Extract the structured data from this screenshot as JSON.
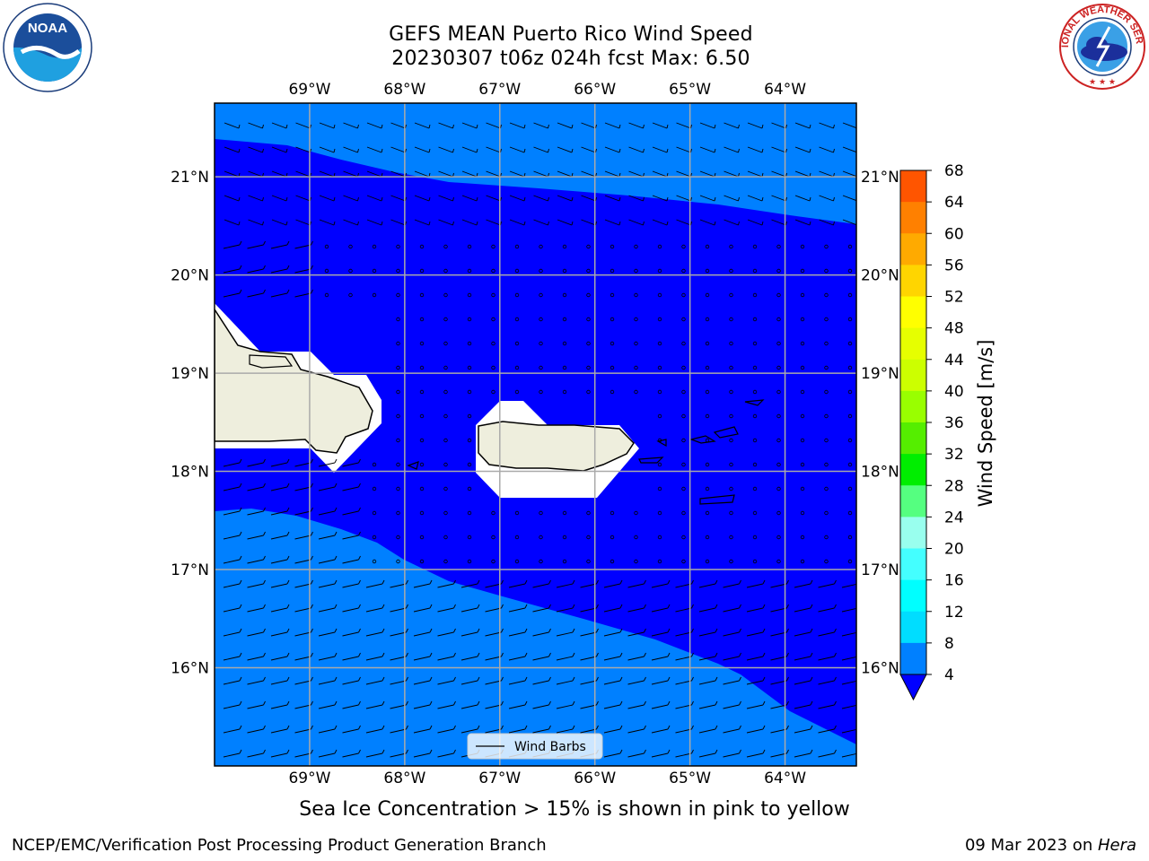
{
  "title": {
    "line1": "GEFS MEAN Puerto Rico Wind Speed",
    "line2": "20230307 t06z 024h fcst   Max: 6.50"
  },
  "logos": {
    "left": {
      "icon": "noaa-logo",
      "text": "NOAA"
    },
    "right": {
      "icon": "national-weather-service-logo",
      "text": "NATIONAL WEATHER SERVICE"
    }
  },
  "axes": {
    "lon_ticks": [
      "69°W",
      "68°W",
      "67°W",
      "66°W",
      "65°W",
      "64°W"
    ],
    "lat_ticks": [
      "21°N",
      "20°N",
      "19°N",
      "18°N",
      "17°N",
      "16°N"
    ],
    "lon_values": [
      -69,
      -68,
      -67,
      -66,
      -65,
      -64
    ],
    "lat_values": [
      21,
      20,
      19,
      18,
      17,
      16
    ],
    "lon_range": [
      -70,
      -63.25
    ],
    "lat_range": [
      15,
      21.75
    ],
    "grid": true
  },
  "legend": {
    "label": "Wind Barbs",
    "placement": "bottom-center"
  },
  "colorbar": {
    "label": "Wind Speed [m/s]",
    "ticks": [
      "68",
      "64",
      "60",
      "56",
      "52",
      "48",
      "44",
      "40",
      "36",
      "32",
      "28",
      "24",
      "20",
      "16",
      "12",
      "8",
      "4"
    ],
    "colors": [
      "#ff0000",
      "#ff2a00",
      "#ff5500",
      "#ff8000",
      "#ffaa00",
      "#ffd500",
      "#ffff00",
      "#e6ff00",
      "#ccff00",
      "#99ff00",
      "#55ee00",
      "#00ee00",
      "#55ff80",
      "#99ffee",
      "#44ffff",
      "#00ffff",
      "#00ddff",
      "#0080ff"
    ],
    "extend_min_color": "#0000ff"
  },
  "chart_data": {
    "type": "heatmap",
    "field": "wind speed",
    "units": "m/s",
    "max": 6.5,
    "levels": [
      4,
      8,
      12,
      16,
      20,
      24,
      28,
      32,
      36,
      40,
      44,
      48,
      52,
      56,
      60,
      64,
      68
    ],
    "regions": [
      {
        "range": "4-8",
        "color": "#0080ff",
        "area": "north edge above ~21°N and south of ~17°N"
      },
      {
        "range": "<4",
        "color": "#0000ff",
        "area": "central band around Puerto Rico"
      }
    ],
    "land_color": "#eeeedd",
    "masked_color": "#ffffff"
  },
  "caption": "Sea Ice Concentration > 15% is shown in pink to yellow",
  "footer": {
    "left": "NCEP/EMC/Verification Post Processing Product Generation Branch",
    "right_prefix": "09 Mar 2023 on ",
    "right_italic": "Hera"
  }
}
